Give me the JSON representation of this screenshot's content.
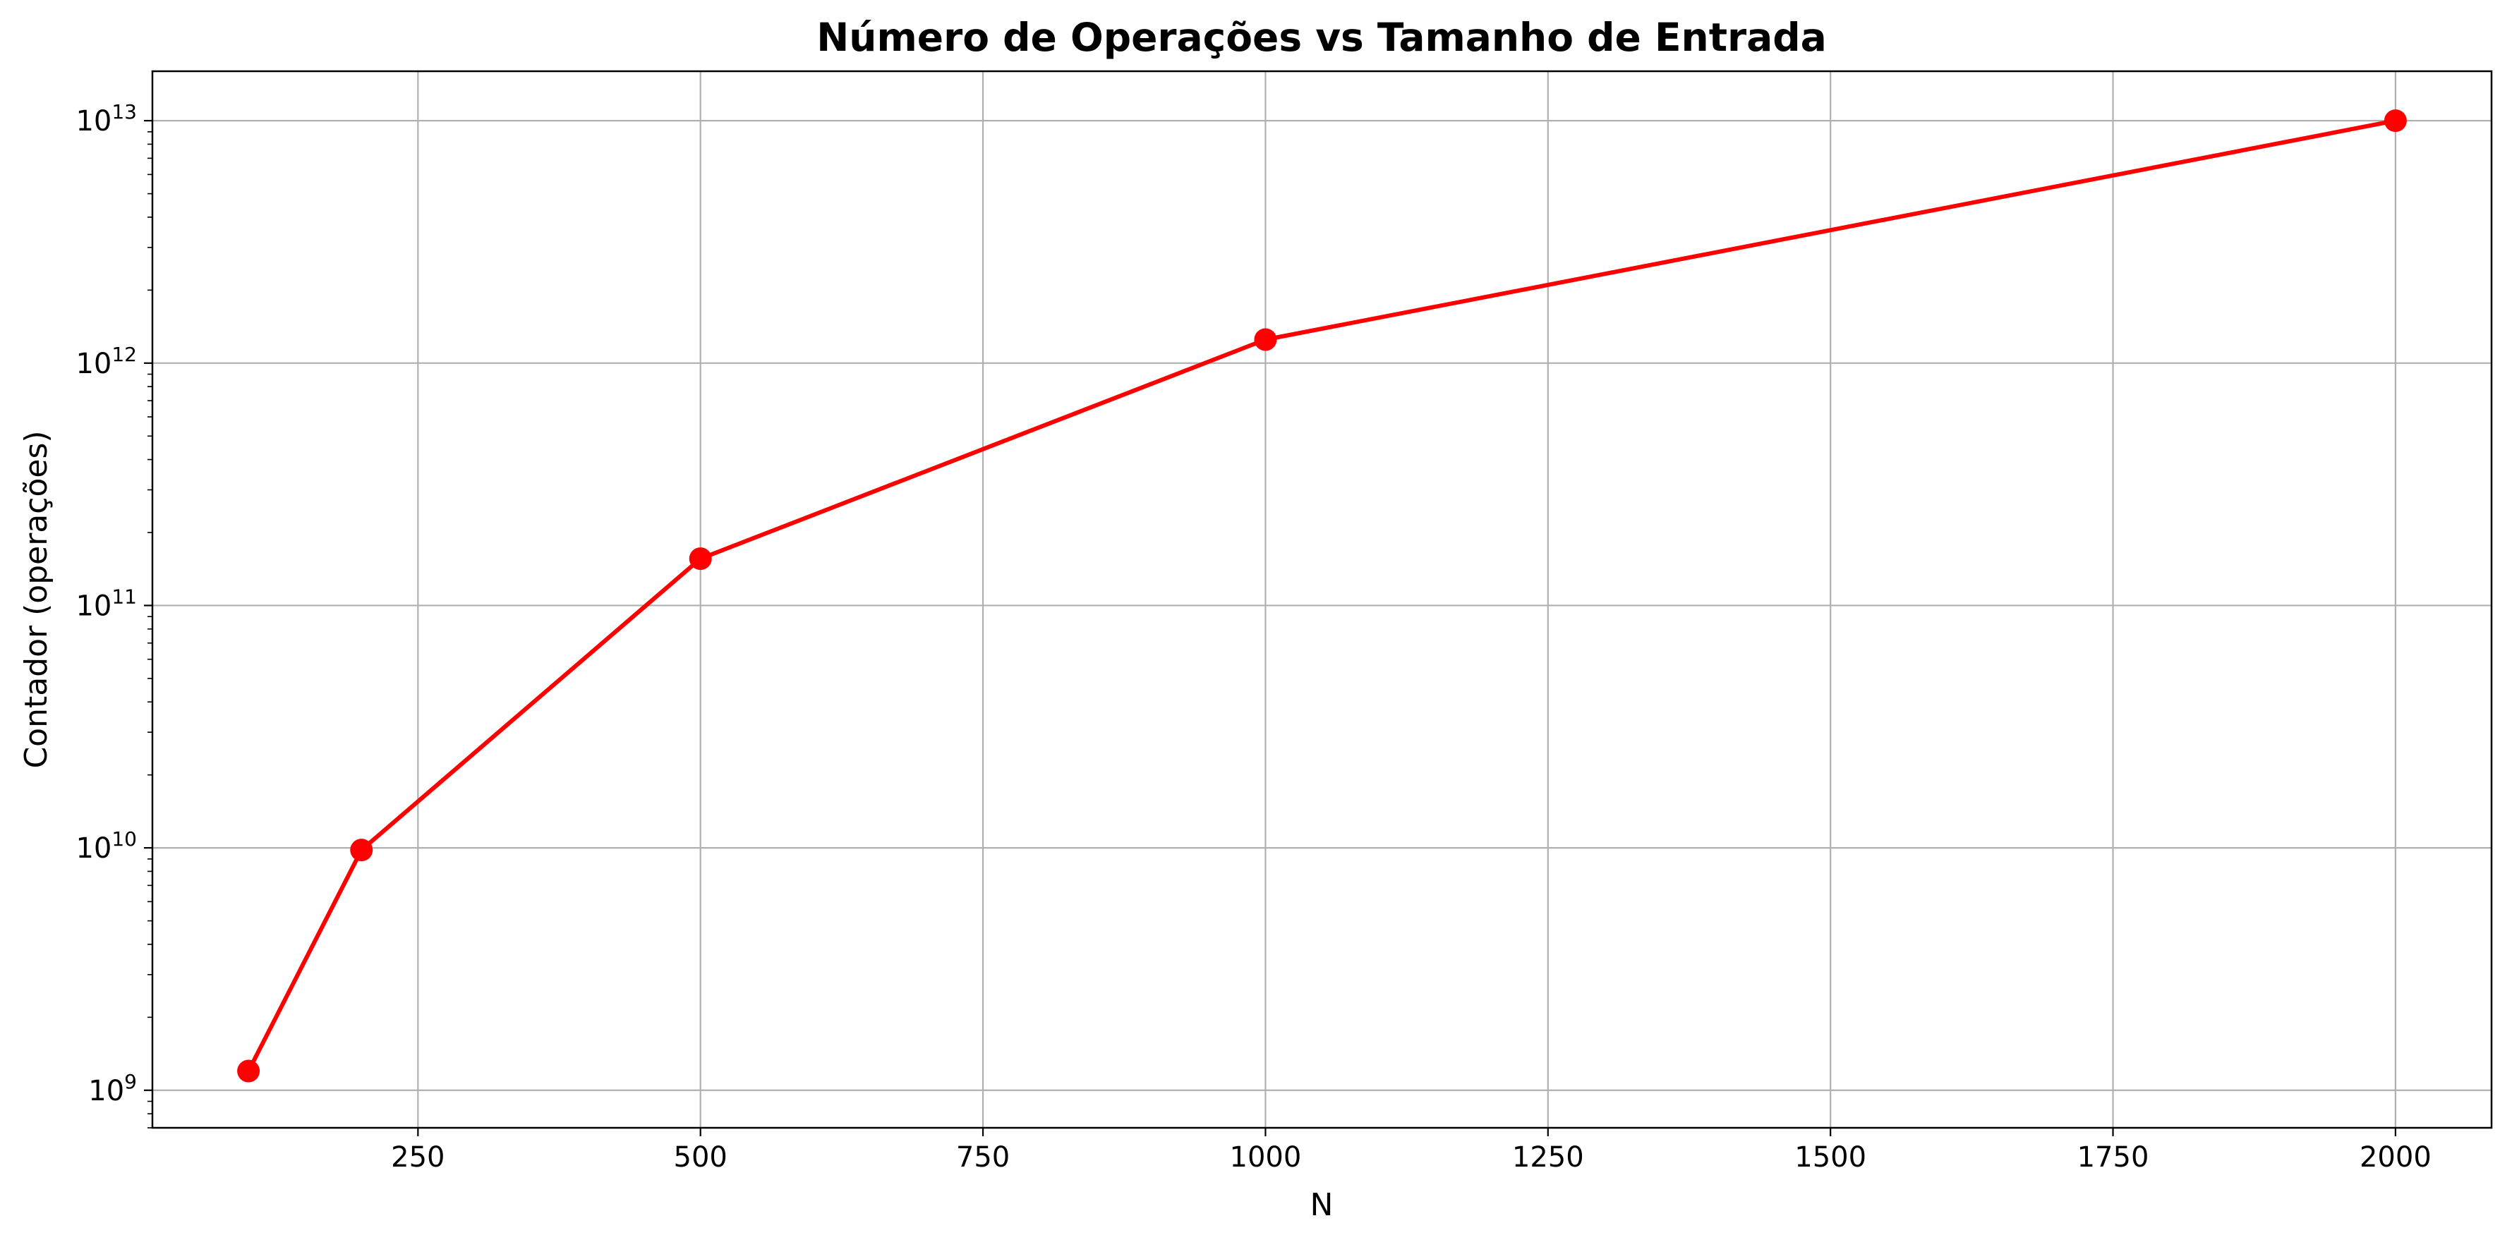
{
  "chart_data": {
    "type": "line",
    "title": "Número de Operações vs Tamanho de Entrada",
    "xlabel": "N",
    "ylabel": "Contador (operações)",
    "x_scale": "linear",
    "y_scale": "log",
    "xlim": [
      15,
      2085
    ],
    "ylim": [
      700000000,
      16000000000000
    ],
    "x_ticks": [
      250,
      500,
      750,
      1000,
      1250,
      1500,
      1750,
      2000
    ],
    "x_tick_labels": [
      "250",
      "500",
      "750",
      "1000",
      "1250",
      "1500",
      "1750",
      "2000"
    ],
    "y_major_ticks": [
      {
        "value": 1000000000,
        "base": "10",
        "exp": "9"
      },
      {
        "value": 10000000000,
        "base": "10",
        "exp": "10"
      },
      {
        "value": 100000000000,
        "base": "10",
        "exp": "11"
      },
      {
        "value": 1000000000000,
        "base": "10",
        "exp": "12"
      },
      {
        "value": 10000000000000,
        "base": "10",
        "exp": "13"
      }
    ],
    "grid": true,
    "legend": "none",
    "series": [
      {
        "color": "#ff0000",
        "marker": "circle",
        "points": [
          {
            "x": 100,
            "y": 1200000000
          },
          {
            "x": 200,
            "y": 9800000000
          },
          {
            "x": 500,
            "y": 156000000000
          },
          {
            "x": 1000,
            "y": 1250000000000
          },
          {
            "x": 2000,
            "y": 10000000000000
          }
        ]
      }
    ]
  }
}
